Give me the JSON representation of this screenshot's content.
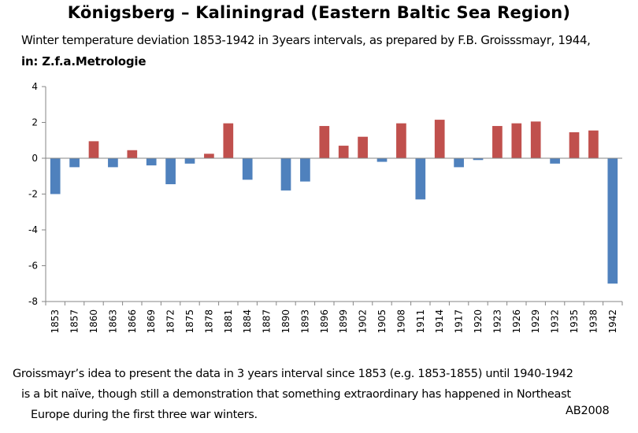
{
  "title": "Königsberg – Kaliningrad (Eastern Baltic Sea Region)",
  "subtitle_line1": "Winter temperature deviation 1853-1942 in 3years intervals, as prepared by F.B. Groisssmayr, 1944,",
  "subtitle_line2": "in: Z.f.a.Metrologie",
  "note": {
    "line1": "Groissmayr’s idea to present the data in 3 years interval since 1853  (e.g. 1853-1855)  until 1940-1942",
    "line2": "is a bit naïve, though still a demonstration that something extraordinary has happened  in  Northeast",
    "line3": "Europe during the first three war winters."
  },
  "signature": "AB2008",
  "colors": {
    "positive": "#c0504d",
    "negative": "#4f81bd",
    "axis": "#868686",
    "grid": "#868686"
  },
  "chart_data": {
    "type": "bar",
    "categories": [
      "1853",
      "1857",
      "1860",
      "1863",
      "1866",
      "1869",
      "1872",
      "1875",
      "1878",
      "1881",
      "1884",
      "1887",
      "1890",
      "1893",
      "1896",
      "1899",
      "1902",
      "1905",
      "1908",
      "1911",
      "1914",
      "1917",
      "1920",
      "1923",
      "1926",
      "1929",
      "1932",
      "1935",
      "1938",
      "1942"
    ],
    "values": [
      -2.0,
      -0.5,
      0.95,
      -0.5,
      0.45,
      -0.4,
      -1.45,
      -0.3,
      0.25,
      1.95,
      -1.2,
      0,
      -1.8,
      -1.3,
      1.8,
      0.7,
      1.2,
      -0.2,
      1.95,
      -2.3,
      2.15,
      -0.5,
      -0.1,
      1.8,
      1.95,
      2.05,
      -0.3,
      1.45,
      1.55,
      -7.0
    ],
    "yticks": [
      4,
      2,
      0,
      -2,
      -4,
      -6,
      -8
    ],
    "ylim": [
      -8,
      4
    ],
    "grid": false,
    "legend": "none"
  }
}
